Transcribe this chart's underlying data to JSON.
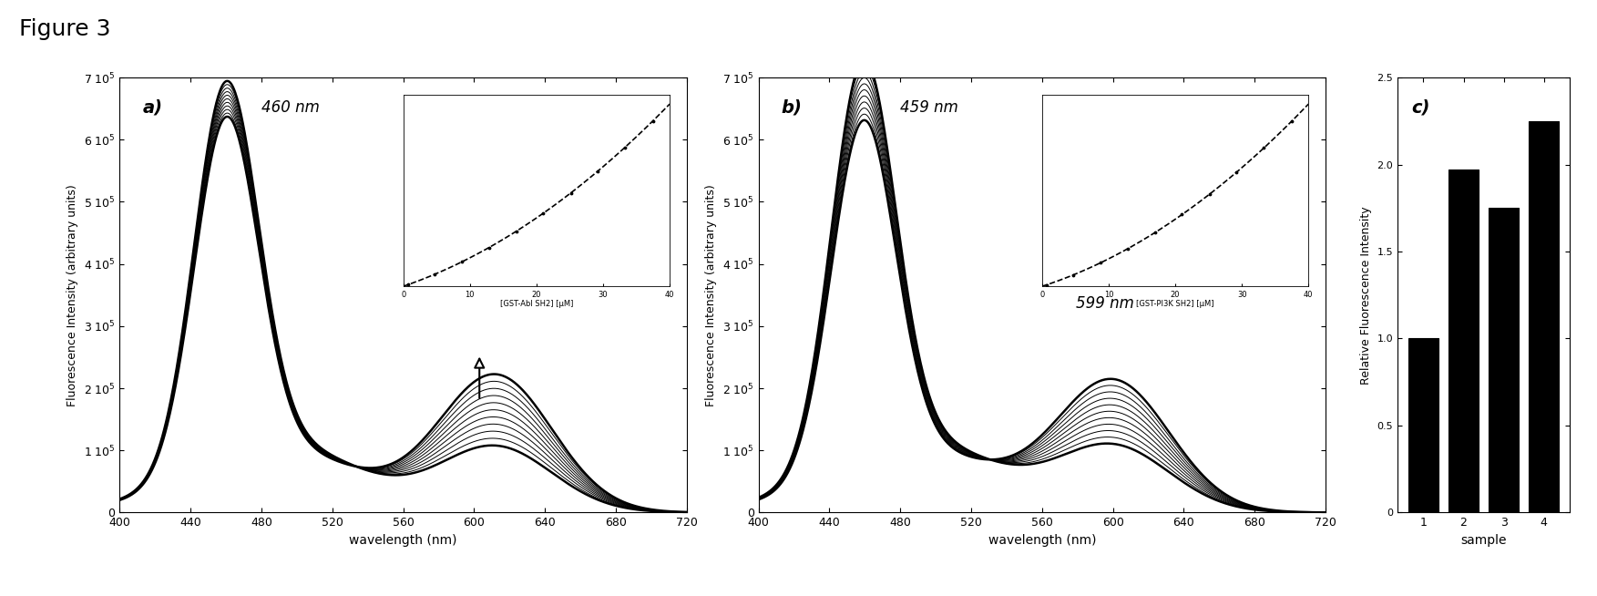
{
  "title": "Figure 3",
  "panel_a_label": "a)",
  "panel_b_label": "b)",
  "panel_c_label": "c)",
  "panel_a_peak_nm": "460 nm",
  "panel_b_peak_nm": "459 nm",
  "panel_b_second_nm": "599 nm",
  "xlabel_spectrum": "wavelength (nm)",
  "ylabel_spectrum": "Fluorescence Intensity (arbitrary units)",
  "ylabel_bar": "Relative Fluorescence Intensity",
  "xlabel_bar": "sample",
  "xmin": 400,
  "xmax": 720,
  "ymin": 0,
  "ymax": 700000,
  "n_curves": 11,
  "bar_values": [
    1.0,
    1.97,
    1.75,
    2.25
  ],
  "bar_categories": [
    "1",
    "2",
    "3",
    "4"
  ],
  "bar_ylim_max": 2.5,
  "bar_yticks": [
    0,
    0.5,
    1.0,
    1.5,
    2.0,
    2.5
  ],
  "inset_a_xlabel": "[GST-Abl SH2] [μM]",
  "inset_b_xlabel": "[GST-PI3K SH2] [μM]",
  "bg_color": "#ffffff",
  "curve_color": "#000000",
  "bar_color": "#000000"
}
